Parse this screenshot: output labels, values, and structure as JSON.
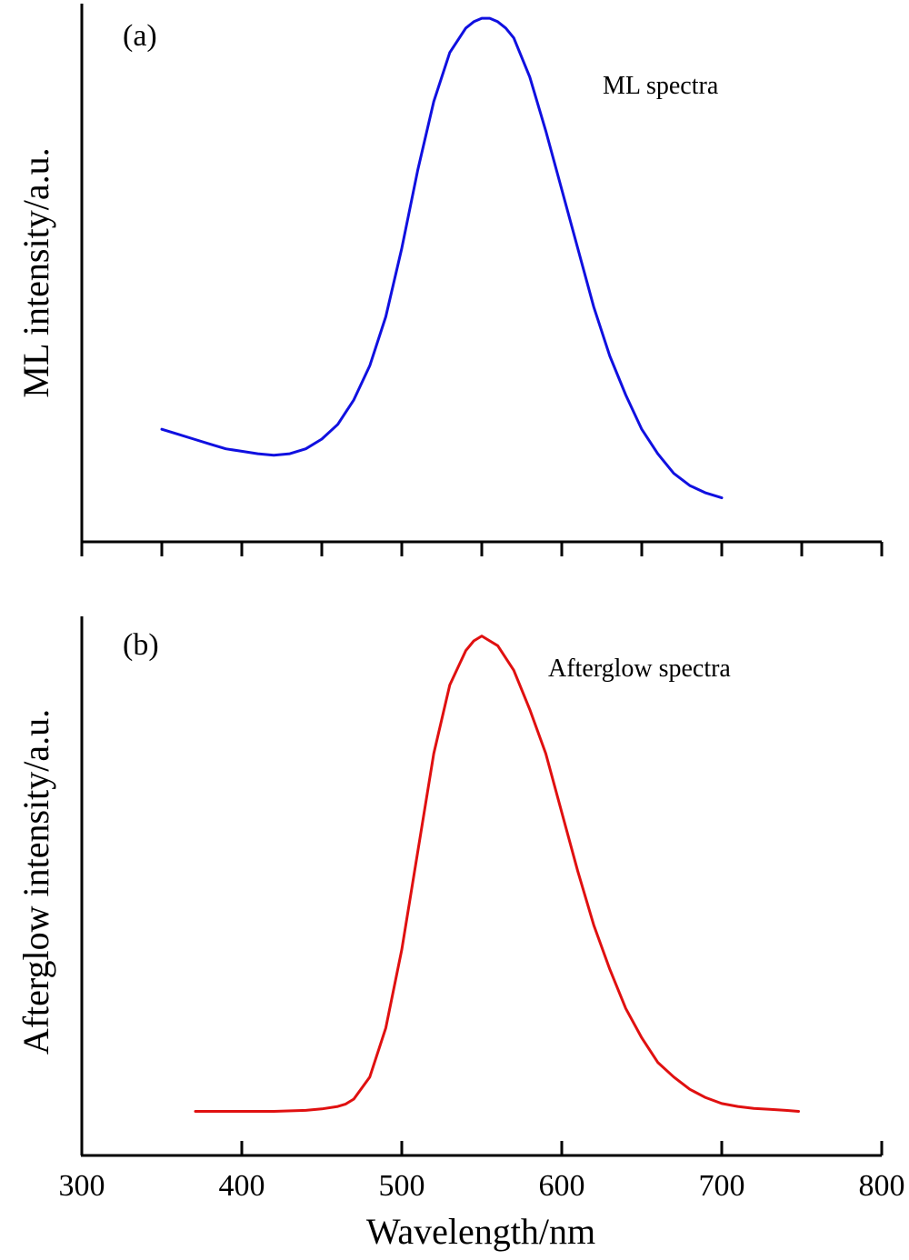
{
  "chart_data": [
    {
      "type": "line",
      "panel_label": "(a)",
      "annotation": "ML spectra",
      "xlabel": "",
      "ylabel": "ML intensity/a.u.",
      "xlim": [
        300,
        800
      ],
      "ylim": [
        0,
        1.1
      ],
      "x_ticks": [
        300,
        350,
        400,
        450,
        500,
        550,
        600,
        650,
        700,
        750,
        800
      ],
      "x_tick_labels_shown": false,
      "y_ticks_shown": false,
      "grid": false,
      "series": [
        {
          "color": "#1010e0",
          "x": [
            350,
            360,
            370,
            380,
            390,
            400,
            410,
            420,
            430,
            440,
            450,
            460,
            470,
            480,
            490,
            500,
            510,
            520,
            530,
            540,
            545,
            550,
            555,
            560,
            565,
            570,
            580,
            590,
            600,
            610,
            620,
            630,
            640,
            650,
            660,
            670,
            680,
            690,
            700
          ],
          "y": [
            0.23,
            0.22,
            0.21,
            0.2,
            0.19,
            0.185,
            0.18,
            0.177,
            0.18,
            0.19,
            0.21,
            0.24,
            0.29,
            0.36,
            0.46,
            0.6,
            0.76,
            0.9,
            1.0,
            1.05,
            1.063,
            1.07,
            1.07,
            1.063,
            1.05,
            1.03,
            0.95,
            0.84,
            0.72,
            0.6,
            0.48,
            0.38,
            0.3,
            0.23,
            0.18,
            0.14,
            0.115,
            0.1,
            0.09
          ]
        }
      ]
    },
    {
      "type": "line",
      "panel_label": "(b)",
      "annotation": "Afterglow spectra",
      "xlabel": "Wavelength/nm",
      "ylabel": "Afterglow intensity/a.u.",
      "xlim": [
        300,
        800
      ],
      "ylim": [
        0,
        1.1
      ],
      "x_ticks": [
        300,
        400,
        500,
        600,
        700,
        800
      ],
      "x_tick_labels": [
        "300",
        "400",
        "500",
        "600",
        "700",
        "800"
      ],
      "y_ticks_shown": false,
      "grid": false,
      "series": [
        {
          "color": "#e01010",
          "x": [
            371,
            380,
            400,
            420,
            440,
            450,
            460,
            465,
            470,
            480,
            490,
            500,
            510,
            520,
            530,
            540,
            545,
            550,
            555,
            560,
            570,
            580,
            590,
            600,
            610,
            620,
            630,
            640,
            650,
            660,
            670,
            680,
            690,
            700,
            710,
            720,
            730,
            740,
            748
          ],
          "y": [
            0.09,
            0.09,
            0.09,
            0.09,
            0.092,
            0.095,
            0.1,
            0.105,
            0.115,
            0.16,
            0.26,
            0.42,
            0.62,
            0.82,
            0.96,
            1.03,
            1.05,
            1.06,
            1.05,
            1.04,
            0.99,
            0.91,
            0.82,
            0.7,
            0.58,
            0.47,
            0.38,
            0.3,
            0.24,
            0.19,
            0.16,
            0.135,
            0.118,
            0.106,
            0.1,
            0.096,
            0.094,
            0.092,
            0.09
          ]
        }
      ]
    }
  ]
}
